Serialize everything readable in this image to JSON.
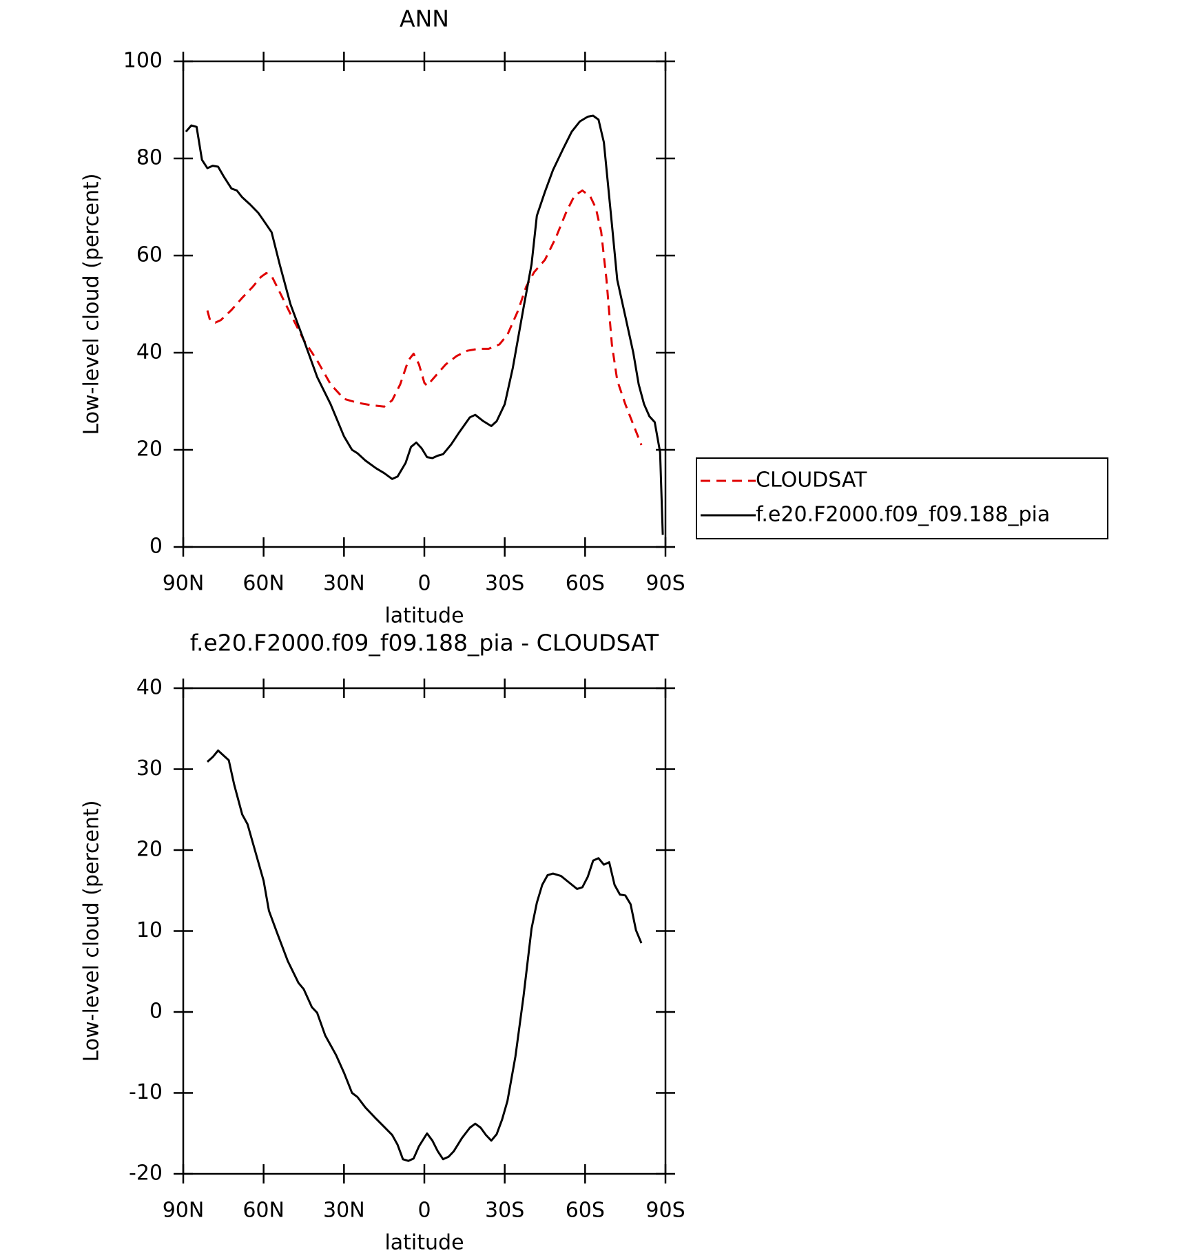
{
  "chart_data": [
    {
      "type": "line",
      "title": "ANN",
      "xlabel": "latitude",
      "ylabel": "Low-level cloud (percent)",
      "xlim": [
        90,
        -90
      ],
      "xticks": [
        {
          "value": 90,
          "label": "90N"
        },
        {
          "value": 60,
          "label": "60N"
        },
        {
          "value": 30,
          "label": "30N"
        },
        0,
        {
          "value": -30,
          "label": "30S"
        },
        {
          "value": -60,
          "label": "60S"
        },
        {
          "value": -90,
          "label": "90S"
        }
      ],
      "ylim": [
        0,
        100
      ],
      "yticks": [
        0,
        20,
        40,
        60,
        80,
        100
      ],
      "legend": "right",
      "series": [
        {
          "name": "CLOUDSAT",
          "color": "#e00000",
          "dash": true,
          "x": [
            81,
            80,
            78,
            76,
            72,
            68,
            64,
            61,
            59,
            57,
            54,
            50,
            45,
            40,
            35,
            30,
            25,
            20,
            15,
            12,
            9,
            6,
            4,
            2,
            0,
            -1,
            -4,
            -8,
            -12,
            -16,
            -20,
            -24,
            -28,
            -31,
            -35,
            -38,
            -41,
            -45,
            -49,
            -53,
            -56,
            -59,
            -62,
            -64,
            -66,
            -68,
            -70,
            -72,
            -75,
            -78,
            -81
          ],
          "values": [
            48.7,
            46.7,
            46.2,
            46.7,
            48.8,
            51.3,
            53.6,
            55.6,
            56.4,
            55.8,
            52.5,
            48,
            42.6,
            38.4,
            33.5,
            30.5,
            29.7,
            29.2,
            28.9,
            30.2,
            33.5,
            38.4,
            39.8,
            37.6,
            33.8,
            33.2,
            35.1,
            37.6,
            39.3,
            40.4,
            40.8,
            40.8,
            41.7,
            43.7,
            48.7,
            53.6,
            56.6,
            59.1,
            63.6,
            69,
            72.3,
            73.4,
            72.1,
            69.8,
            64.9,
            55,
            41.7,
            34.3,
            29.4,
            25.2,
            21
          ]
        },
        {
          "name": "f.e20.F2000.f09_f09.188_pia",
          "color": "#000000",
          "dash": false,
          "x": [
            89,
            87,
            85,
            83,
            81,
            79,
            77,
            75,
            72,
            70,
            68,
            65,
            62,
            60,
            57,
            54,
            50,
            45,
            40,
            35,
            30,
            27,
            25,
            22,
            18,
            15,
            12,
            10,
            7,
            5,
            3,
            1,
            -1,
            -3,
            -5,
            -7,
            -10,
            -13,
            -17,
            -19,
            -22,
            -25,
            -27,
            -30,
            -33,
            -37,
            -40,
            -42,
            -45,
            -48,
            -52,
            -55,
            -58,
            -61,
            -63,
            -65,
            -67,
            -70,
            -72,
            -75,
            -78,
            -80,
            -82,
            -84,
            -86,
            -88,
            -89
          ],
          "values": [
            85.5,
            86.8,
            86.5,
            79.7,
            78,
            78.5,
            78.3,
            76.4,
            73.8,
            73.4,
            72,
            70.5,
            68.8,
            67.2,
            64.8,
            58.2,
            50,
            42.6,
            35,
            29.4,
            22.8,
            20,
            19.3,
            17.8,
            16.2,
            15.2,
            14,
            14.5,
            17.3,
            20.6,
            21.5,
            20.3,
            18.5,
            18.3,
            18.8,
            19.1,
            21.1,
            23.6,
            26.7,
            27.2,
            25.9,
            24.9,
            25.9,
            29.4,
            36.8,
            49.2,
            58.2,
            68.2,
            73.1,
            77.6,
            82.2,
            85.5,
            87.6,
            88.6,
            88.8,
            88,
            83.3,
            66.5,
            55,
            47.5,
            40,
            33.5,
            29.4,
            26.9,
            25.7,
            19.5,
            2.5
          ]
        }
      ]
    },
    {
      "type": "line",
      "title": "f.e20.F2000.f09_f09.188_pia - CLOUDSAT",
      "xlabel": "latitude",
      "ylabel": "Low-level cloud (percent)",
      "xlim": [
        90,
        -90
      ],
      "xticks": [
        {
          "value": 90,
          "label": "90N"
        },
        {
          "value": 60,
          "label": "60N"
        },
        {
          "value": 30,
          "label": "30N"
        },
        0,
        {
          "value": -30,
          "label": "30S"
        },
        {
          "value": -60,
          "label": "60S"
        },
        {
          "value": -90,
          "label": "90S"
        }
      ],
      "ylim": [
        -20,
        40
      ],
      "yticks": [
        -20,
        -10,
        0,
        10,
        20,
        30,
        40
      ],
      "series": [
        {
          "color": "#000000",
          "dash": false,
          "x": [
            81,
            79,
            77,
            73,
            71,
            68,
            66,
            63,
            60,
            58,
            55,
            51,
            47,
            45,
            42,
            40,
            37,
            33,
            30,
            27,
            25,
            22,
            18,
            15,
            12,
            10,
            8,
            6,
            4,
            2,
            -1,
            -3,
            -5,
            -7,
            -9,
            -11,
            -14,
            -17,
            -19,
            -21,
            -23,
            -25,
            -27,
            -29,
            -31,
            -34,
            -37,
            -40,
            -42,
            -44,
            -46,
            -48,
            -51,
            -54,
            -57,
            -59,
            -61,
            -63,
            -65,
            -67,
            -69,
            -71,
            -73,
            -75,
            -77,
            -79,
            -81
          ],
          "values": [
            30.9,
            31.5,
            32.3,
            31.1,
            28.1,
            24.4,
            23.2,
            19.7,
            16.2,
            12.5,
            9.8,
            6.3,
            3.6,
            2.8,
            0.6,
            -0.1,
            -2.9,
            -5.3,
            -7.5,
            -10,
            -10.5,
            -11.8,
            -13.2,
            -14.2,
            -15.2,
            -16.4,
            -18.2,
            -18.4,
            -18.1,
            -16.6,
            -15,
            -15.9,
            -17.2,
            -18.2,
            -17.9,
            -17.2,
            -15.6,
            -14.3,
            -13.8,
            -14.3,
            -15.2,
            -15.9,
            -15.1,
            -13.3,
            -11,
            -5.5,
            1.9,
            10.3,
            13.5,
            15.7,
            16.9,
            17.1,
            16.8,
            16,
            15.2,
            15.4,
            16.7,
            18.7,
            19,
            18.2,
            18.5,
            15.7,
            14.5,
            14.4,
            13.3,
            10.1,
            8.5
          ]
        }
      ]
    }
  ]
}
